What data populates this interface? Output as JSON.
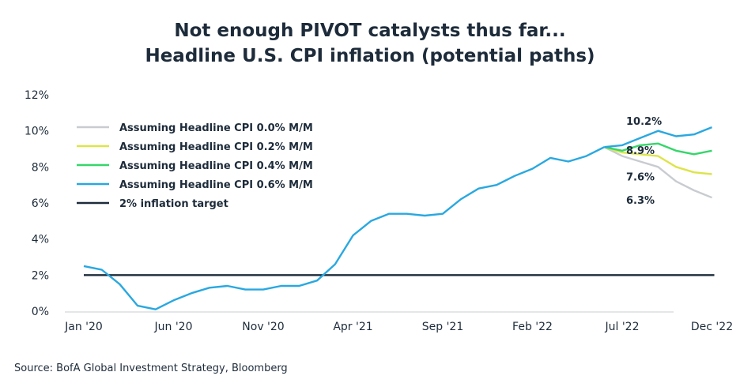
{
  "chart_data": {
    "type": "line",
    "title": "Not enough PIVOT catalysts thus far...",
    "subtitle": "Headline U.S. CPI inflation (potential paths)",
    "xlabel": "",
    "ylabel": "",
    "x_ticks": [
      "Jan '20",
      "Jun '20",
      "Nov '20",
      "Apr '21",
      "Sep '21",
      "Feb '22",
      "Jul '22",
      "Dec '22"
    ],
    "y_ticks": [
      "0%",
      "2%",
      "4%",
      "6%",
      "8%",
      "10%",
      "12%"
    ],
    "ylim": [
      0,
      12
    ],
    "x_range": [
      "Jan '20",
      "Dec '22"
    ],
    "grid": false,
    "legend_position": "top-left",
    "history": {
      "x": [
        "Jan '20",
        "Feb '20",
        "Mar '20",
        "Apr '20",
        "May '20",
        "Jun '20",
        "Jul '20",
        "Aug '20",
        "Sep '20",
        "Oct '20",
        "Nov '20",
        "Dec '20",
        "Jan '21",
        "Feb '21",
        "Mar '21",
        "Apr '21",
        "May '21",
        "Jun '21",
        "Jul '21",
        "Aug '21",
        "Sep '21",
        "Oct '21",
        "Nov '21",
        "Dec '21",
        "Jan '22",
        "Feb '22",
        "Mar '22",
        "Apr '22",
        "May '22",
        "Jun '22"
      ],
      "values": [
        2.5,
        2.3,
        1.5,
        0.3,
        0.1,
        0.6,
        1.0,
        1.3,
        1.4,
        1.2,
        1.2,
        1.4,
        1.4,
        1.7,
        2.6,
        4.2,
        5.0,
        5.4,
        5.4,
        5.3,
        5.4,
        6.2,
        6.8,
        7.0,
        7.5,
        7.9,
        8.5,
        8.3,
        8.6,
        9.1
      ]
    },
    "projection_x": [
      "Jun '22",
      "Jul '22",
      "Aug '22",
      "Sep '22",
      "Oct '22",
      "Nov '22",
      "Dec '22"
    ],
    "series": [
      {
        "name": "Assuming Headline CPI 0.0% M/M",
        "color": "#c8ccd0",
        "values": [
          9.1,
          8.6,
          8.3,
          8.0,
          7.2,
          6.7,
          6.3
        ],
        "end_label": "6.3%"
      },
      {
        "name": "Assuming Headline CPI 0.2% M/M",
        "color": "#dde44a",
        "values": [
          9.1,
          8.8,
          8.7,
          8.6,
          8.0,
          7.7,
          7.6
        ],
        "end_label": "7.6%"
      },
      {
        "name": "Assuming Headline CPI 0.4% M/M",
        "color": "#35d66a",
        "values": [
          9.1,
          8.9,
          9.2,
          9.3,
          8.9,
          8.7,
          8.9
        ],
        "end_label": "8.9%"
      },
      {
        "name": "Assuming Headline CPI 0.6% M/M",
        "color": "#29a8e0",
        "values": [
          9.1,
          9.2,
          9.6,
          10.0,
          9.7,
          9.8,
          10.2
        ],
        "end_label": "10.2%"
      }
    ],
    "target": {
      "name": "2% inflation target",
      "value": 2.0,
      "color": "#1d2b3a"
    }
  },
  "footer": {
    "source": "Source: BofA Global Investment Strategy, Bloomberg"
  }
}
